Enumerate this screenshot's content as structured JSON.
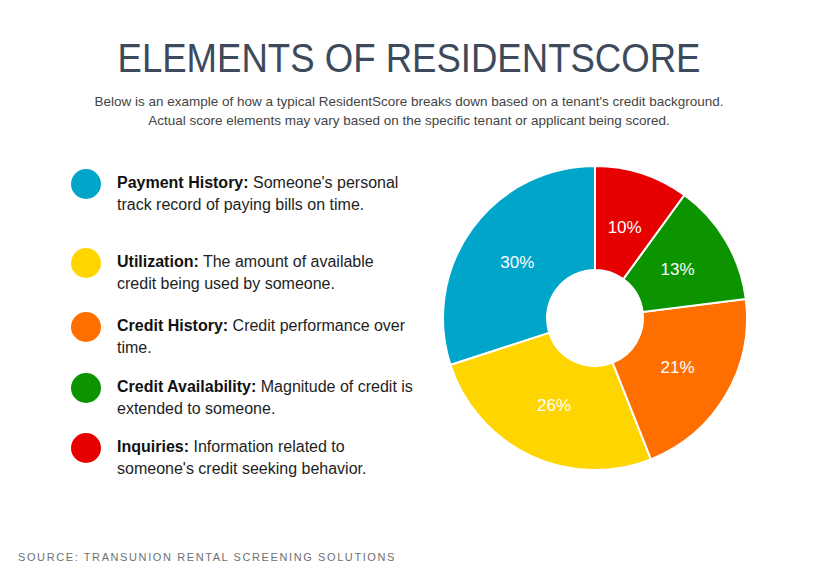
{
  "chart_data": {
    "type": "pie",
    "title": "ELEMENTS OF RESIDENTSCORE",
    "subtitle": [
      "Below is an example of how a typical ResidentScore breaks down based on a tenant's credit background.",
      "Actual score elements may vary based on the specific tenant or applicant being scored."
    ],
    "categories": [
      "Payment History:",
      "Utilization:",
      "Credit History:",
      "Credit Availability:",
      "Inquiries:"
    ],
    "descriptions": [
      "Someone's personal track record of paying bills on time.",
      "The amount of available credit being used by someone.",
      "Credit performance over time.",
      "Magnitude of credit is extended to someone.",
      "Information related to someone's credit seeking behavior."
    ],
    "values": [
      30,
      26,
      21,
      13,
      10
    ],
    "value_labels": [
      "30%",
      "26%",
      "21%",
      "13%",
      "10%"
    ],
    "colors": [
      "#00a6c9",
      "#ffd500",
      "#ff6f00",
      "#0b9300",
      "#e60000"
    ],
    "data_labels": true,
    "source": "SOURCE: TRANSUNION RENTAL SCREENING SOLUTIONS"
  }
}
